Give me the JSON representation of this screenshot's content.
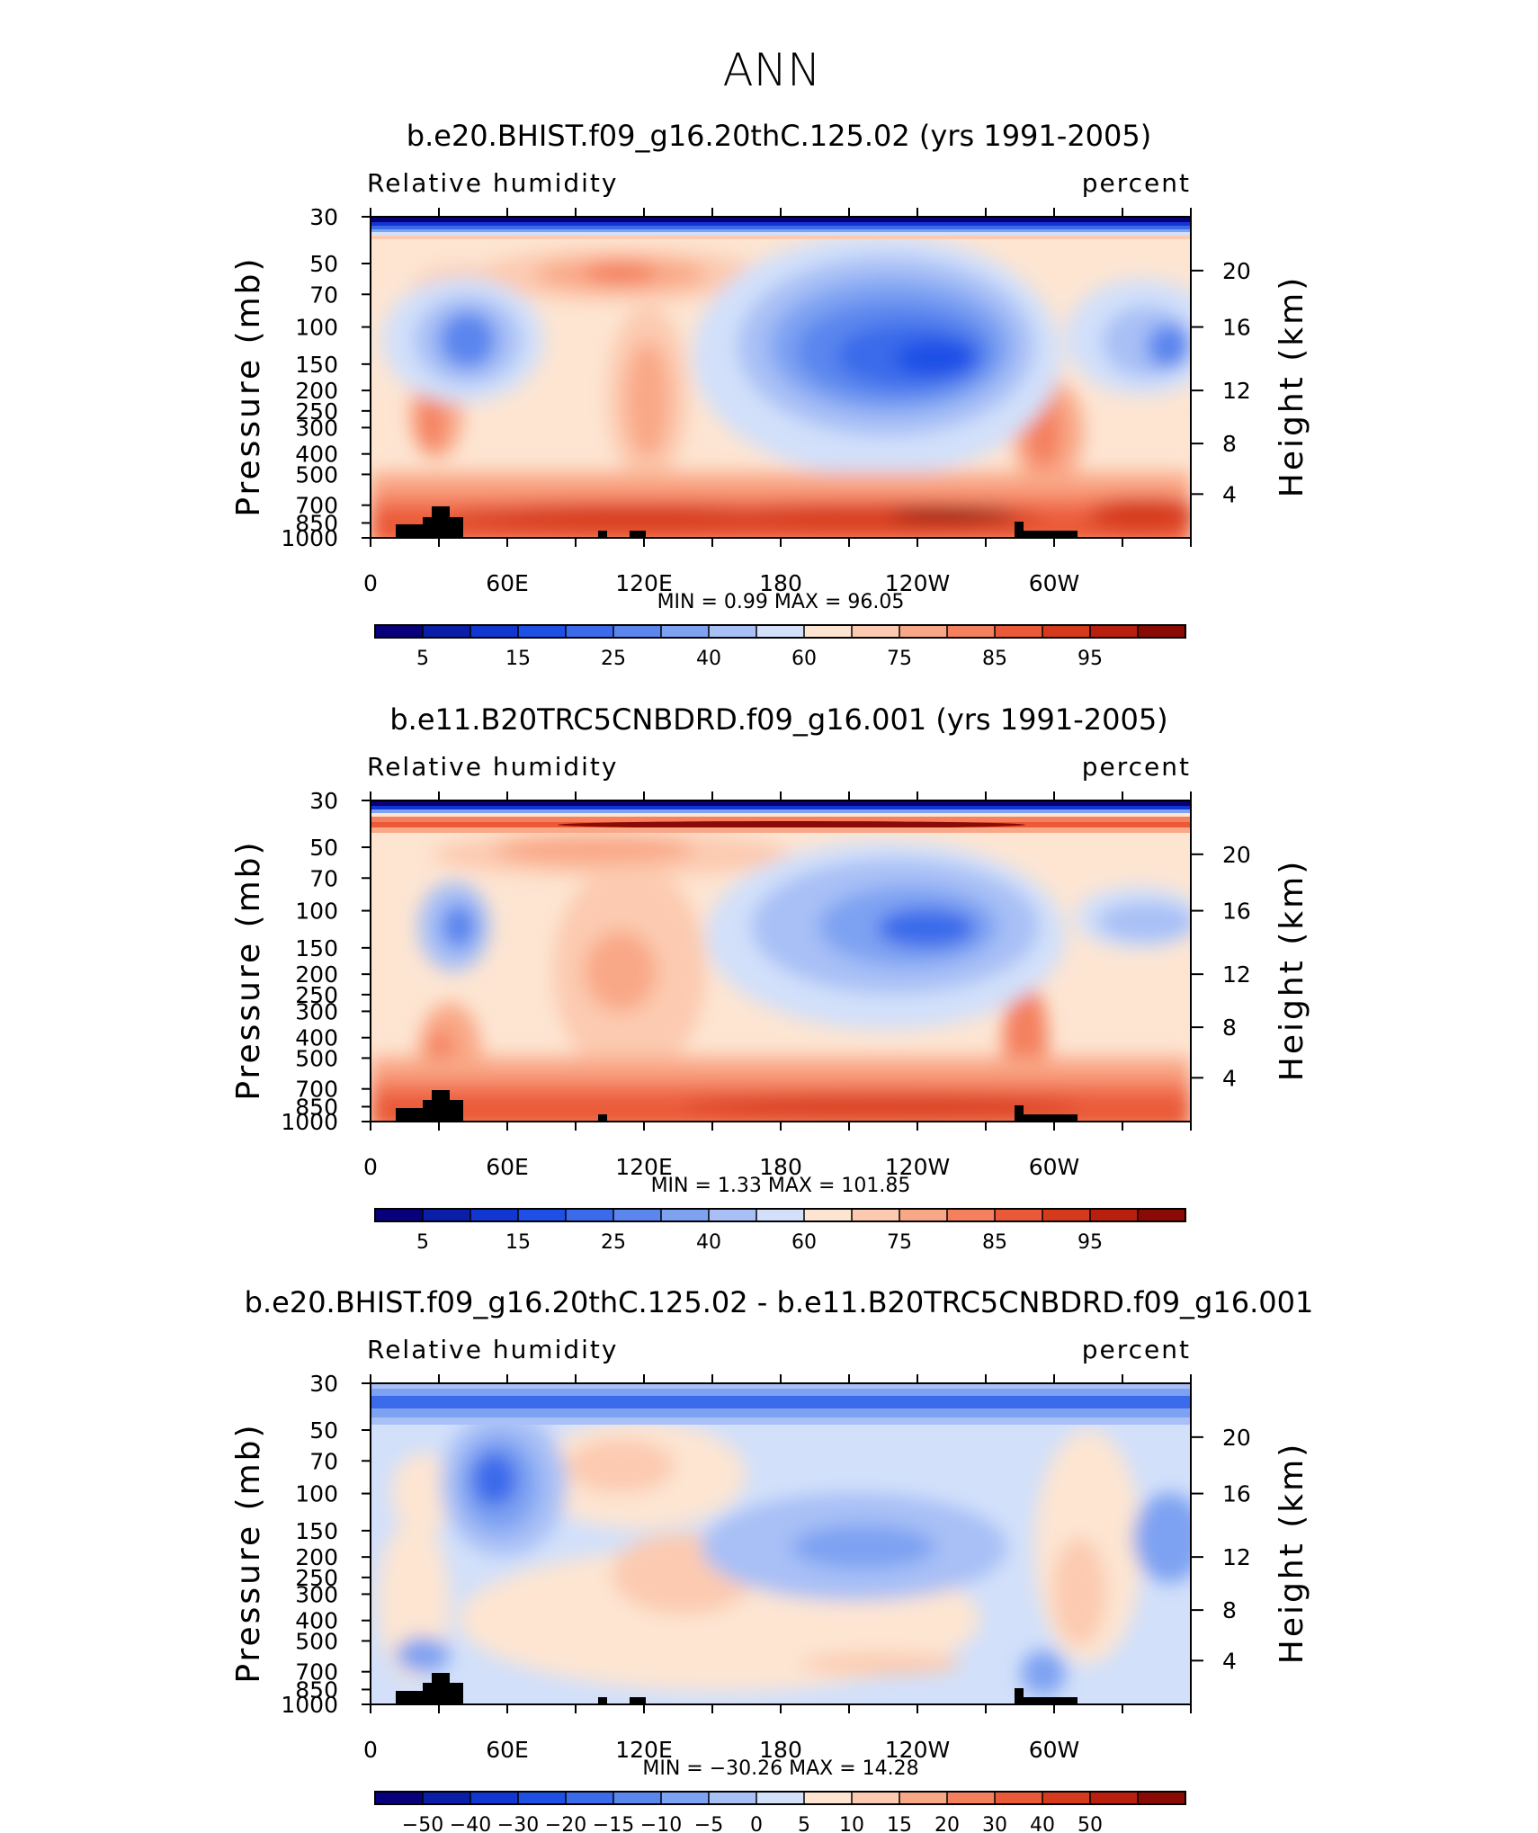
{
  "page_title": "ANN",
  "chart_data": [
    {
      "type": "heatmap",
      "title": "b.e20.BHIST.f09_g16.20thC.125.02 (yrs 1991-2005)",
      "left_label": "Relative humidity",
      "right_label": "percent",
      "ylabel": "Pressure (mb)",
      "ylabel_right": "Height (km)",
      "x_ticks": [
        "0",
        "60E",
        "120E",
        "180",
        "120W",
        "60W"
      ],
      "y_ticks": [
        "30",
        "50",
        "70",
        "100",
        "150",
        "200",
        "250",
        "300",
        "400",
        "500",
        "700",
        "850",
        "1000"
      ],
      "height_ticks": [
        "20",
        "16",
        "12",
        "8",
        "4"
      ],
      "stats_text": "MIN =    0.99   MAX =   96.05",
      "min": 0.99,
      "max": 96.05,
      "colorbar_ticks": [
        "5",
        "15",
        "25",
        "40",
        "60",
        "75",
        "85",
        "95"
      ]
    },
    {
      "type": "heatmap",
      "title": "b.e11.B20TRC5CNBDRD.f09_g16.001 (yrs 1991-2005)",
      "left_label": "Relative humidity",
      "right_label": "percent",
      "ylabel": "Pressure (mb)",
      "ylabel_right": "Height (km)",
      "x_ticks": [
        "0",
        "60E",
        "120E",
        "180",
        "120W",
        "60W"
      ],
      "y_ticks": [
        "30",
        "50",
        "70",
        "100",
        "150",
        "200",
        "250",
        "300",
        "400",
        "500",
        "700",
        "850",
        "1000"
      ],
      "height_ticks": [
        "20",
        "16",
        "12",
        "8",
        "4"
      ],
      "stats_text": "MIN =    1.33   MAX =  101.85",
      "min": 1.33,
      "max": 101.85,
      "colorbar_ticks": [
        "5",
        "15",
        "25",
        "40",
        "60",
        "75",
        "85",
        "95"
      ]
    },
    {
      "type": "heatmap",
      "title": "b.e20.BHIST.f09_g16.20thC.125.02 - b.e11.B20TRC5CNBDRD.f09_g16.001",
      "left_label": "Relative humidity",
      "right_label": "percent",
      "ylabel": "Pressure (mb)",
      "ylabel_right": "Height (km)",
      "x_ticks": [
        "0",
        "60E",
        "120E",
        "180",
        "120W",
        "60W"
      ],
      "y_ticks": [
        "30",
        "50",
        "70",
        "100",
        "150",
        "200",
        "250",
        "300",
        "400",
        "500",
        "700",
        "850",
        "1000"
      ],
      "height_ticks": [
        "20",
        "16",
        "12",
        "8",
        "4"
      ],
      "stats_text": "MIN = −30.26   MAX =   14.28",
      "min": -30.26,
      "max": 14.28,
      "colorbar_ticks": [
        "−50",
        "−40",
        "−30",
        "−20",
        "−15",
        "−10",
        "−5",
        "0",
        "5",
        "10",
        "15",
        "20",
        "30",
        "40",
        "50"
      ]
    }
  ],
  "colors": {
    "scale": [
      "#08007a",
      "#0a1ea8",
      "#1236d0",
      "#1e50e6",
      "#3b6bea",
      "#5a86ee",
      "#7ea2f2",
      "#a8c0f6",
      "#d2e0fa",
      "#fde5d2",
      "#fccab0",
      "#f9a887",
      "#f4805e",
      "#ea5a39",
      "#d63a1c",
      "#b81f0e",
      "#8a0a05"
    ]
  }
}
